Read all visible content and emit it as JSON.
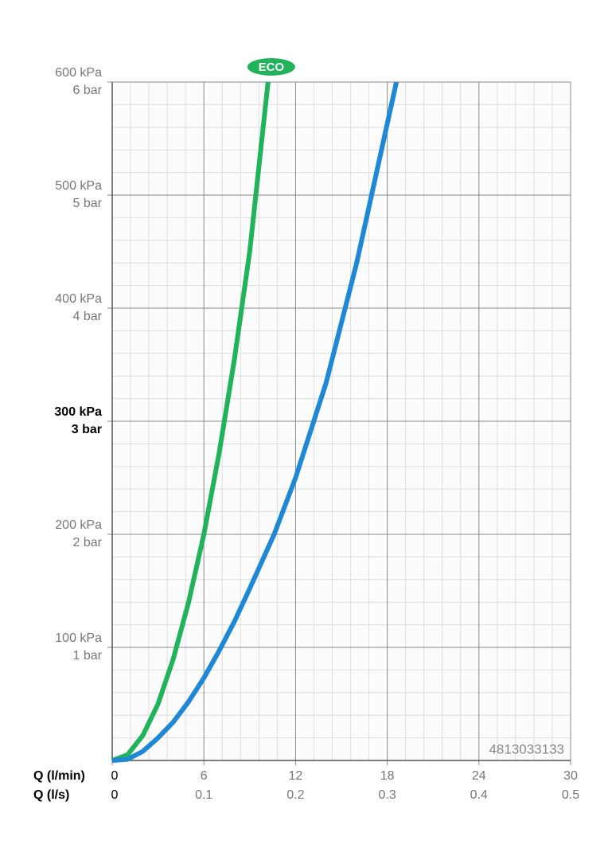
{
  "chart_data": {
    "type": "line",
    "xlabel": "Q (l/min)",
    "x2label": "Q (l/s)",
    "xlim": [
      0,
      30
    ],
    "xticks": [
      0,
      6,
      12,
      18,
      24,
      30
    ],
    "x2ticks": [
      0,
      0.1,
      0.2,
      0.3,
      0.4,
      0.5
    ],
    "ylim": [
      0,
      600
    ],
    "yticks": [
      {
        "value": 100,
        "label": "100 kPa"
      },
      {
        "value": 200,
        "label": "200 kPa"
      },
      {
        "value": 300,
        "label": "300 kPa"
      },
      {
        "value": 400,
        "label": "400 kPa"
      },
      {
        "value": 500,
        "label": "500 kPa"
      },
      {
        "value": 600,
        "label": "600 kPa"
      }
    ],
    "yticks_secondary": [
      {
        "value": 100,
        "label": "1 bar"
      },
      {
        "value": 200,
        "label": "2 bar"
      },
      {
        "value": 300,
        "label": "3 bar"
      },
      {
        "value": 400,
        "label": "4 bar"
      },
      {
        "value": 500,
        "label": "5 bar"
      },
      {
        "value": 600,
        "label": "6 bar"
      }
    ],
    "highlight_ytick": 300,
    "grid": true,
    "minor_divisions": 5,
    "annotation": "4813033133",
    "series": [
      {
        "name": "ECO",
        "color": "#21b35a",
        "x": [
          0,
          1,
          2,
          3,
          4,
          5,
          6,
          7,
          8,
          9,
          10.2
        ],
        "values": [
          0,
          5,
          22,
          50,
          90,
          140,
          200,
          272,
          355,
          450,
          600
        ]
      },
      {
        "color": "#1e88d6",
        "x": [
          0,
          1,
          2,
          3,
          4,
          5,
          6,
          7,
          8,
          9,
          10.6,
          12,
          14,
          16,
          18.6
        ],
        "values": [
          0,
          1,
          8,
          20,
          34,
          52,
          73,
          97,
          123,
          152,
          200,
          250,
          334,
          440,
          600
        ]
      }
    ]
  }
}
